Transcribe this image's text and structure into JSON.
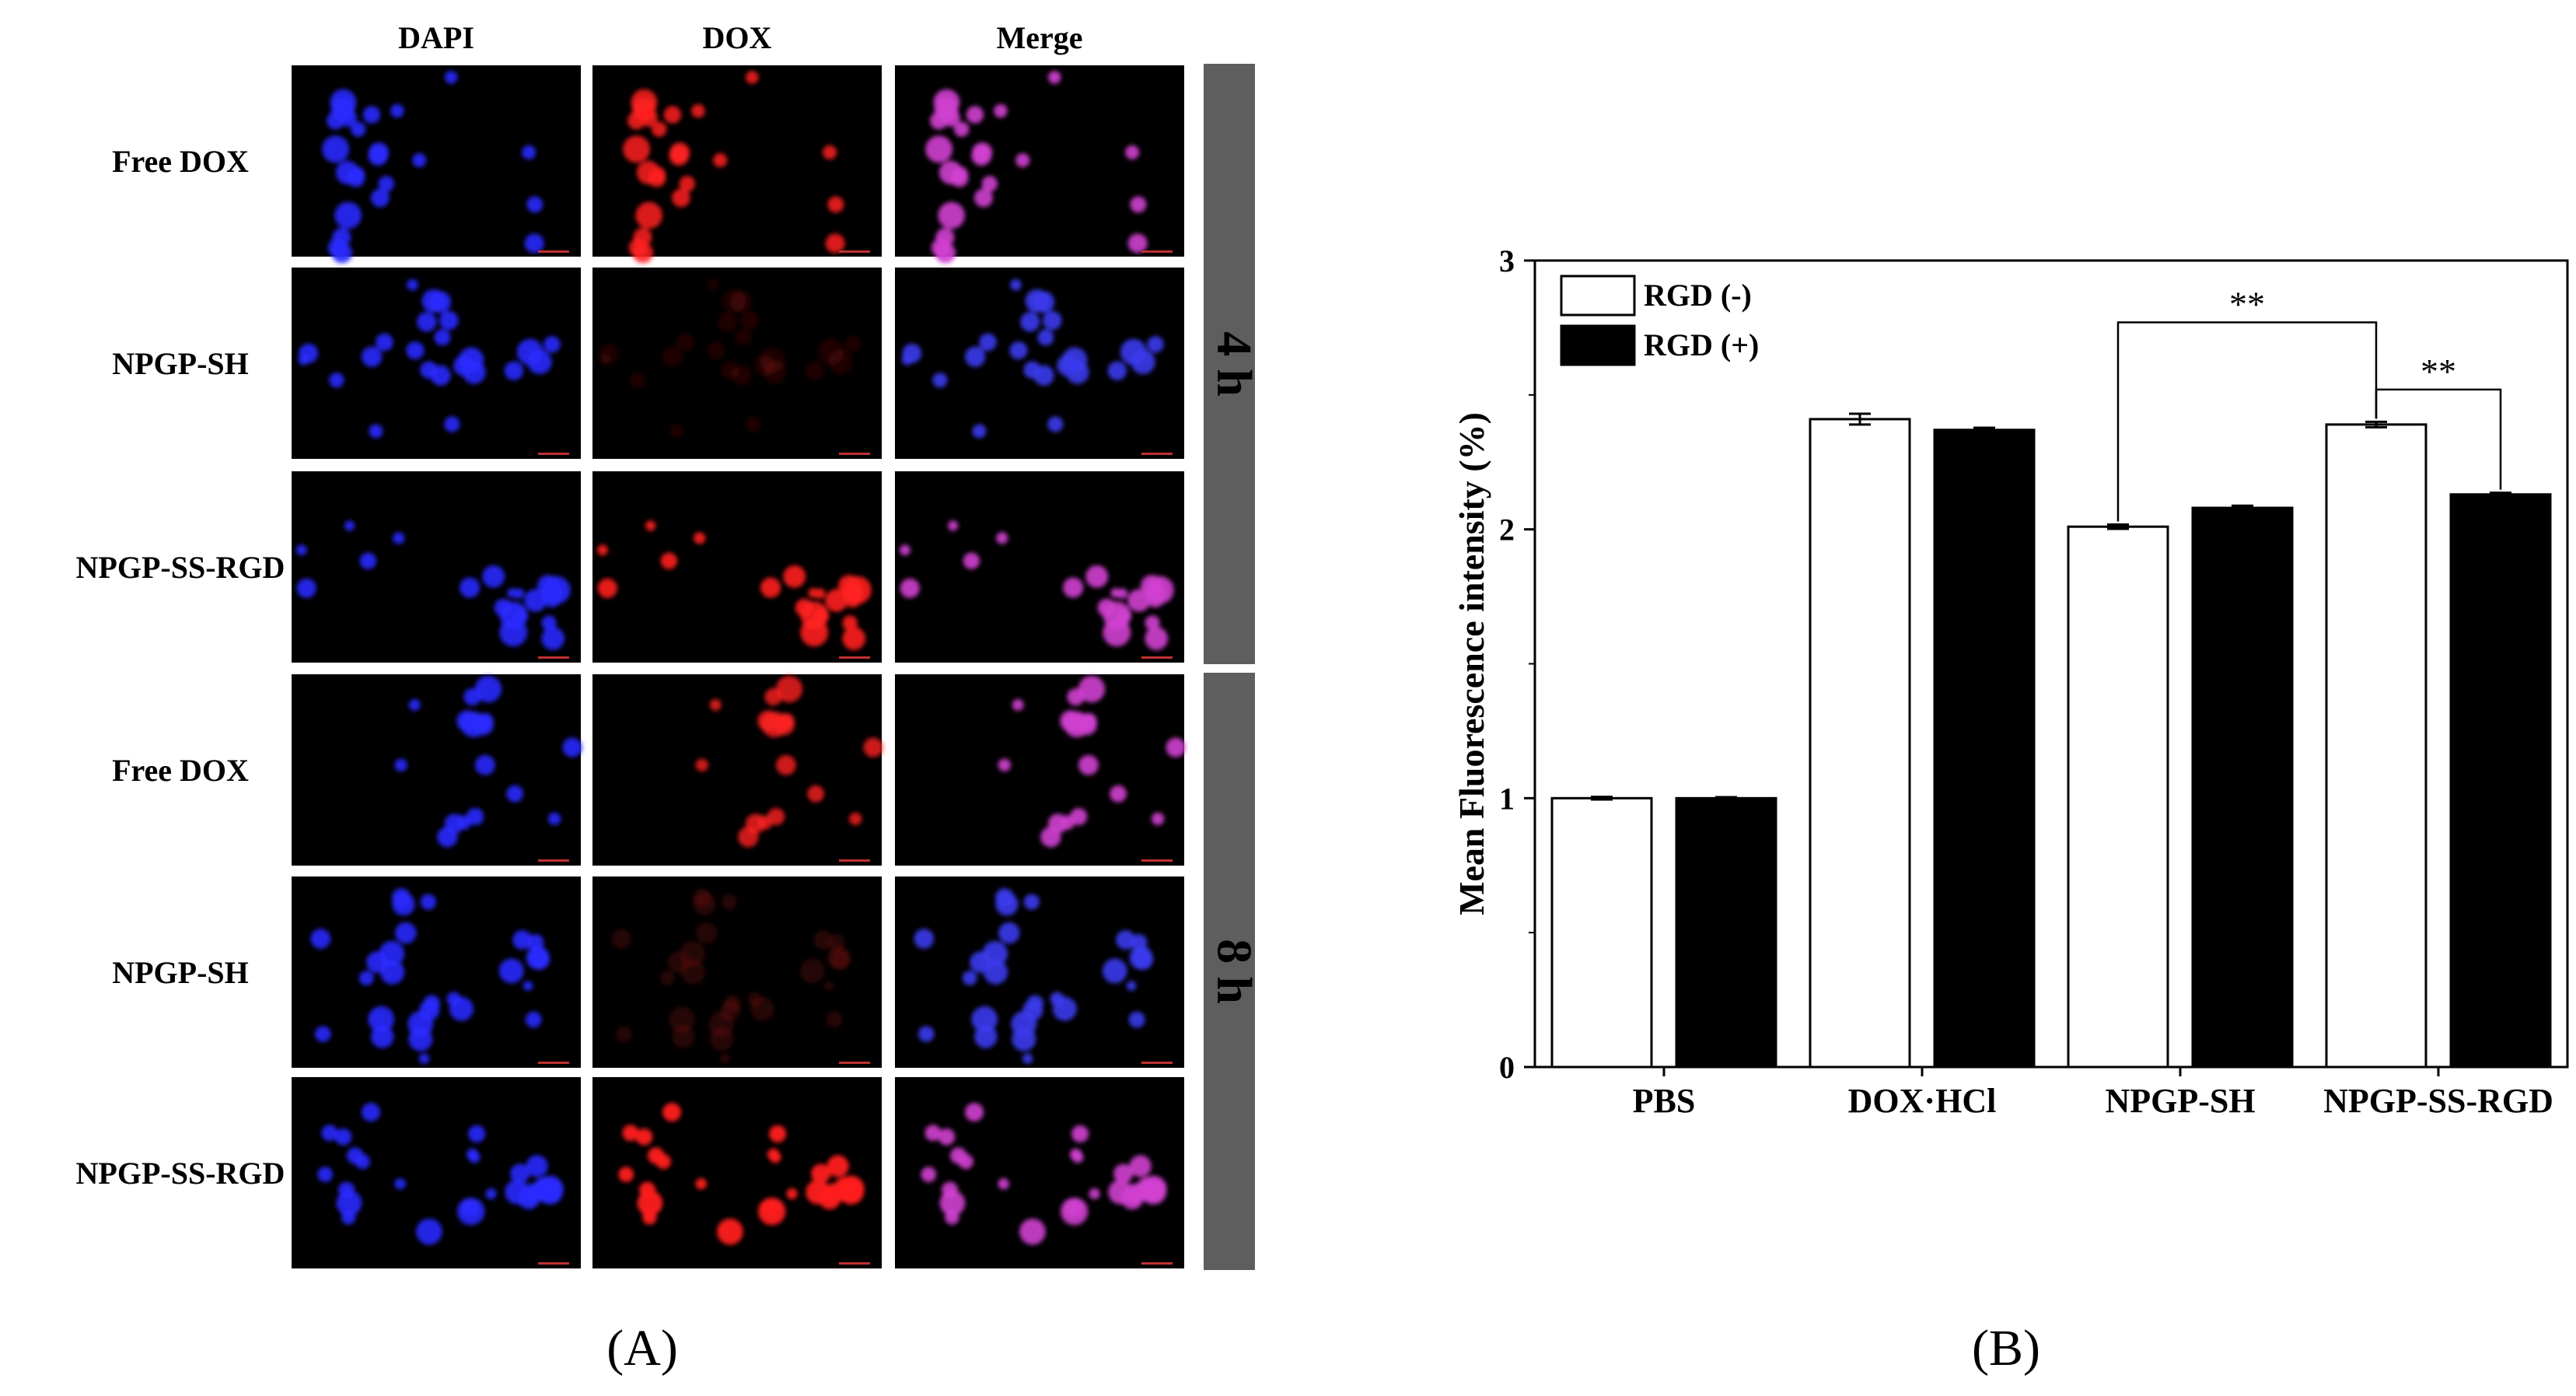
{
  "panel_a": {
    "panel_label": "(A)",
    "columns": [
      "DAPI",
      "DOX",
      "Merge"
    ],
    "rows": [
      {
        "label": "Free DOX",
        "dox": 0.85,
        "scene": 0
      },
      {
        "label": "NPGP-SH",
        "dox": 0.12,
        "scene": 1
      },
      {
        "label": "NPGP-SS-RGD",
        "dox": 0.9,
        "scene": 2
      },
      {
        "label": "Free DOX",
        "dox": 0.8,
        "scene": 3
      },
      {
        "label": "NPGP-SH",
        "dox": 0.15,
        "scene": 4
      },
      {
        "label": "NPGP-SS-RGD",
        "dox": 0.95,
        "scene": 5
      }
    ],
    "time_groups": [
      {
        "label": "4 h",
        "rows": [
          0,
          1,
          2
        ]
      },
      {
        "label": "8 h",
        "rows": [
          3,
          4,
          5
        ]
      }
    ],
    "colors": {
      "dapi": "#2a2aff",
      "dox": "#ff2020",
      "merge": "#d040d0",
      "time_bar": "#5e5e5e",
      "background": "#000000"
    }
  },
  "chart_data": {
    "type": "bar",
    "panel_label": "(B)",
    "categories": [
      "PBS",
      "DOX·HCl",
      "NPGP-SH",
      "NPGP-SS-RGD"
    ],
    "series": [
      {
        "name": "RGD (-)",
        "values": [
          1.0,
          2.41,
          2.01,
          2.39
        ],
        "errors": [
          0.005,
          0.02,
          0.008,
          0.01
        ],
        "color": "#ffffff"
      },
      {
        "name": "RGD (+)",
        "values": [
          1.0,
          2.37,
          2.08,
          2.13
        ],
        "errors": [
          0.004,
          0.008,
          0.008,
          0.006
        ],
        "color": "#000000"
      }
    ],
    "xlabel": "",
    "ylabel": "Mean Fluorescence intensity (%)",
    "ylim": [
      0,
      3
    ],
    "yticks": [
      0,
      1,
      2,
      3
    ],
    "grid": false,
    "legend_position": "top-left",
    "annotations": [
      {
        "text": "**",
        "from": {
          "category": 2,
          "series": 0
        },
        "to": {
          "category": 3,
          "series": 0
        },
        "level": 2.77
      },
      {
        "text": "**",
        "from": {
          "category": 3,
          "series": 0
        },
        "to": {
          "category": 3,
          "series": 1
        },
        "level": 2.52
      }
    ]
  }
}
